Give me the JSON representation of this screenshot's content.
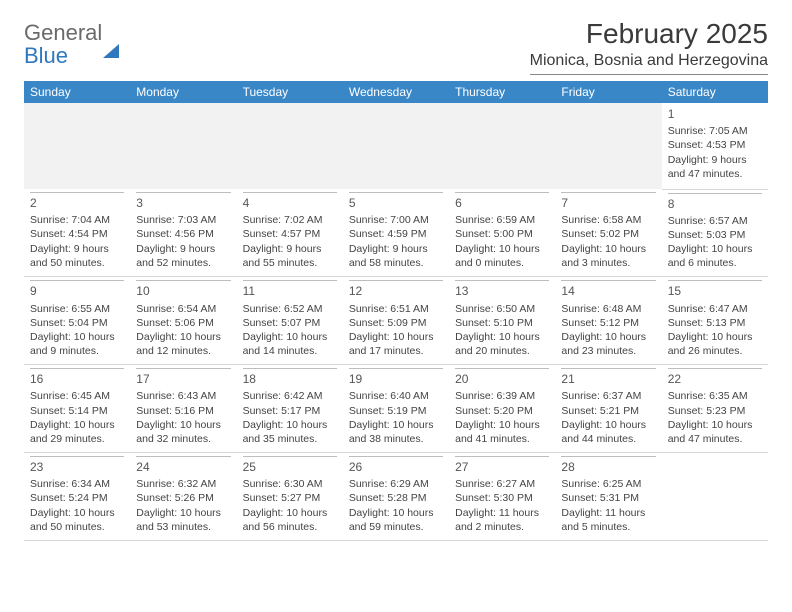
{
  "logo": {
    "word1": "General",
    "word2": "Blue"
  },
  "title": "February 2025",
  "location": "Mionica, Bosnia and Herzegovina",
  "colors": {
    "header_bg": "#3a87c7",
    "header_text": "#ffffff",
    "text": "#444444",
    "logo_gray": "#6a6a6a",
    "logo_blue": "#2f78bd",
    "rule": "#d6d6d6"
  },
  "weekdays": [
    "Sunday",
    "Monday",
    "Tuesday",
    "Wednesday",
    "Thursday",
    "Friday",
    "Saturday"
  ],
  "weeks": [
    [
      null,
      null,
      null,
      null,
      null,
      null,
      {
        "n": "1",
        "sunrise": "7:05 AM",
        "sunset": "4:53 PM",
        "dh": "9",
        "dm": "47"
      }
    ],
    [
      {
        "n": "2",
        "sunrise": "7:04 AM",
        "sunset": "4:54 PM",
        "dh": "9",
        "dm": "50"
      },
      {
        "n": "3",
        "sunrise": "7:03 AM",
        "sunset": "4:56 PM",
        "dh": "9",
        "dm": "52"
      },
      {
        "n": "4",
        "sunrise": "7:02 AM",
        "sunset": "4:57 PM",
        "dh": "9",
        "dm": "55"
      },
      {
        "n": "5",
        "sunrise": "7:00 AM",
        "sunset": "4:59 PM",
        "dh": "9",
        "dm": "58"
      },
      {
        "n": "6",
        "sunrise": "6:59 AM",
        "sunset": "5:00 PM",
        "dh": "10",
        "dm": "0"
      },
      {
        "n": "7",
        "sunrise": "6:58 AM",
        "sunset": "5:02 PM",
        "dh": "10",
        "dm": "3"
      },
      {
        "n": "8",
        "sunrise": "6:57 AM",
        "sunset": "5:03 PM",
        "dh": "10",
        "dm": "6"
      }
    ],
    [
      {
        "n": "9",
        "sunrise": "6:55 AM",
        "sunset": "5:04 PM",
        "dh": "10",
        "dm": "9"
      },
      {
        "n": "10",
        "sunrise": "6:54 AM",
        "sunset": "5:06 PM",
        "dh": "10",
        "dm": "12"
      },
      {
        "n": "11",
        "sunrise": "6:52 AM",
        "sunset": "5:07 PM",
        "dh": "10",
        "dm": "14"
      },
      {
        "n": "12",
        "sunrise": "6:51 AM",
        "sunset": "5:09 PM",
        "dh": "10",
        "dm": "17"
      },
      {
        "n": "13",
        "sunrise": "6:50 AM",
        "sunset": "5:10 PM",
        "dh": "10",
        "dm": "20"
      },
      {
        "n": "14",
        "sunrise": "6:48 AM",
        "sunset": "5:12 PM",
        "dh": "10",
        "dm": "23"
      },
      {
        "n": "15",
        "sunrise": "6:47 AM",
        "sunset": "5:13 PM",
        "dh": "10",
        "dm": "26"
      }
    ],
    [
      {
        "n": "16",
        "sunrise": "6:45 AM",
        "sunset": "5:14 PM",
        "dh": "10",
        "dm": "29"
      },
      {
        "n": "17",
        "sunrise": "6:43 AM",
        "sunset": "5:16 PM",
        "dh": "10",
        "dm": "32"
      },
      {
        "n": "18",
        "sunrise": "6:42 AM",
        "sunset": "5:17 PM",
        "dh": "10",
        "dm": "35"
      },
      {
        "n": "19",
        "sunrise": "6:40 AM",
        "sunset": "5:19 PM",
        "dh": "10",
        "dm": "38"
      },
      {
        "n": "20",
        "sunrise": "6:39 AM",
        "sunset": "5:20 PM",
        "dh": "10",
        "dm": "41"
      },
      {
        "n": "21",
        "sunrise": "6:37 AM",
        "sunset": "5:21 PM",
        "dh": "10",
        "dm": "44"
      },
      {
        "n": "22",
        "sunrise": "6:35 AM",
        "sunset": "5:23 PM",
        "dh": "10",
        "dm": "47"
      }
    ],
    [
      {
        "n": "23",
        "sunrise": "6:34 AM",
        "sunset": "5:24 PM",
        "dh": "10",
        "dm": "50"
      },
      {
        "n": "24",
        "sunrise": "6:32 AM",
        "sunset": "5:26 PM",
        "dh": "10",
        "dm": "53"
      },
      {
        "n": "25",
        "sunrise": "6:30 AM",
        "sunset": "5:27 PM",
        "dh": "10",
        "dm": "56"
      },
      {
        "n": "26",
        "sunrise": "6:29 AM",
        "sunset": "5:28 PM",
        "dh": "10",
        "dm": "59"
      },
      {
        "n": "27",
        "sunrise": "6:27 AM",
        "sunset": "5:30 PM",
        "dh": "11",
        "dm": "2"
      },
      {
        "n": "28",
        "sunrise": "6:25 AM",
        "sunset": "5:31 PM",
        "dh": "11",
        "dm": "5"
      },
      null
    ]
  ]
}
